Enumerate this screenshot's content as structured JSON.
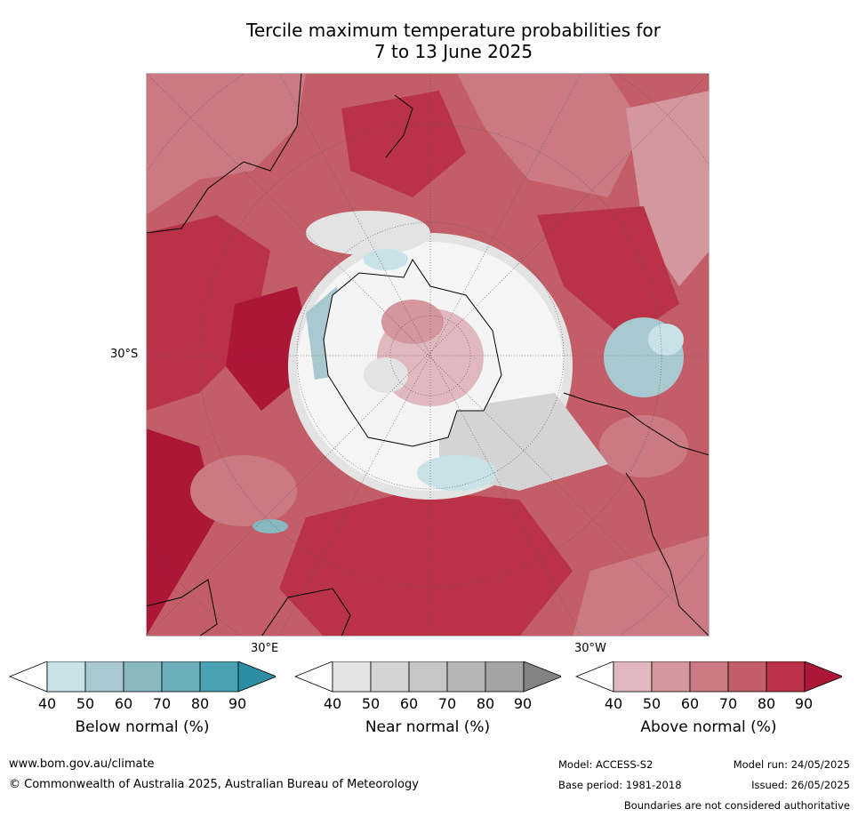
{
  "title": {
    "line1": "Tercile maximum temperature probabilities for",
    "line2": "7 to 13 June 2025"
  },
  "map": {
    "projection": "south polar stereographic",
    "axis_labels": {
      "left": "30°S",
      "bottom_left": "30°E",
      "bottom_right": "30°W"
    },
    "colors": {
      "above": [
        "#e0b8be",
        "#d5979e",
        "#cb7a83",
        "#c35d68",
        "#b93247",
        "#ac1737"
      ],
      "near": [
        "#e3e3e3",
        "#d4d4d4",
        "#c6c6c6",
        "#b6b6b6",
        "#a3a3a3",
        "#838383"
      ],
      "below": [
        "#c9e2e8",
        "#a8c9cf",
        "#88b8c0",
        "#6aaebb",
        "#4aa1b1",
        "#2d8ea3"
      ],
      "land_outline": "#000000",
      "grid": "#555555"
    }
  },
  "colorbars": [
    {
      "label": "Below normal (%)",
      "ticks": [
        "40",
        "50",
        "60",
        "70",
        "80",
        "90"
      ]
    },
    {
      "label": "Near normal (%)",
      "ticks": [
        "40",
        "50",
        "60",
        "70",
        "80",
        "90"
      ]
    },
    {
      "label": "Above normal (%)",
      "ticks": [
        "40",
        "50",
        "60",
        "70",
        "80",
        "90"
      ]
    }
  ],
  "footer": {
    "website": "www.bom.gov.au/climate",
    "copyright": "© Commonwealth of Australia 2025, Australian Bureau of Meteorology",
    "model": "Model: ACCESS-S2",
    "base_period": "Base period: 1981-2018",
    "model_run": "Model run: 24/05/2025",
    "issued": "Issued: 26/05/2025",
    "disclaimer": "Boundaries are not considered authoritative"
  }
}
